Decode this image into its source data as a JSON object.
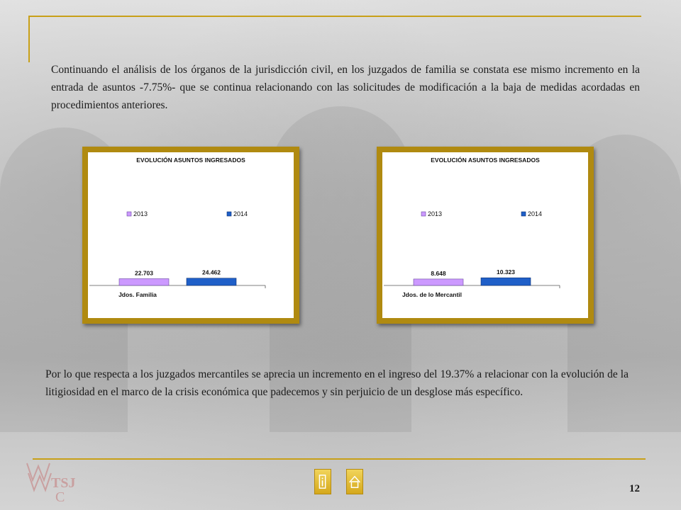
{
  "paragraphs": {
    "top": "Continuando el análisis de los órganos de la jurisdicción civil, en los juzgados de familia se constata ese mismo incremento en la entrada de asuntos -7.75%- que se continua relacionando con las solicitudes de modificación a la baja de medidas acordadas en procedimientos anteriores.",
    "bottom": "Por lo que respecta a los juzgados mercantiles se aprecia un incremento en el ingreso del 19.37% a relacionar con la evolución de la litigiosidad en el marco de la crisis económica que padecemos y sin perjuicio de un desglose más específico."
  },
  "page_number": "12",
  "colors": {
    "gold": "#c8a018",
    "series_2013": "#cc99ff",
    "series_2014": "#1f5fc8"
  },
  "icons": {
    "info_button": "info-icon",
    "home_button": "home-icon",
    "logo": "tsj-logo"
  },
  "chart_data": [
    {
      "type": "bar",
      "title": "EVOLUCIÓN ASUNTOS INGRESADOS",
      "categories": [
        "Jdos. Familia"
      ],
      "series": [
        {
          "name": "2013",
          "values": [
            22703
          ],
          "label": "22.703"
        },
        {
          "name": "2014",
          "values": [
            24462
          ],
          "label": "24.462"
        }
      ],
      "legend": "top",
      "ylim": [
        0,
        200000
      ],
      "grid": false
    },
    {
      "type": "bar",
      "title": "EVOLUCIÓN ASUNTOS INGRESADOS",
      "categories": [
        "Jdos. de lo Mercantil"
      ],
      "series": [
        {
          "name": "2013",
          "values": [
            8648
          ],
          "label": "8.648"
        },
        {
          "name": "2014",
          "values": [
            10323
          ],
          "label": "10.323"
        }
      ],
      "legend": "top",
      "ylim": [
        0,
        80000
      ],
      "grid": false
    }
  ]
}
